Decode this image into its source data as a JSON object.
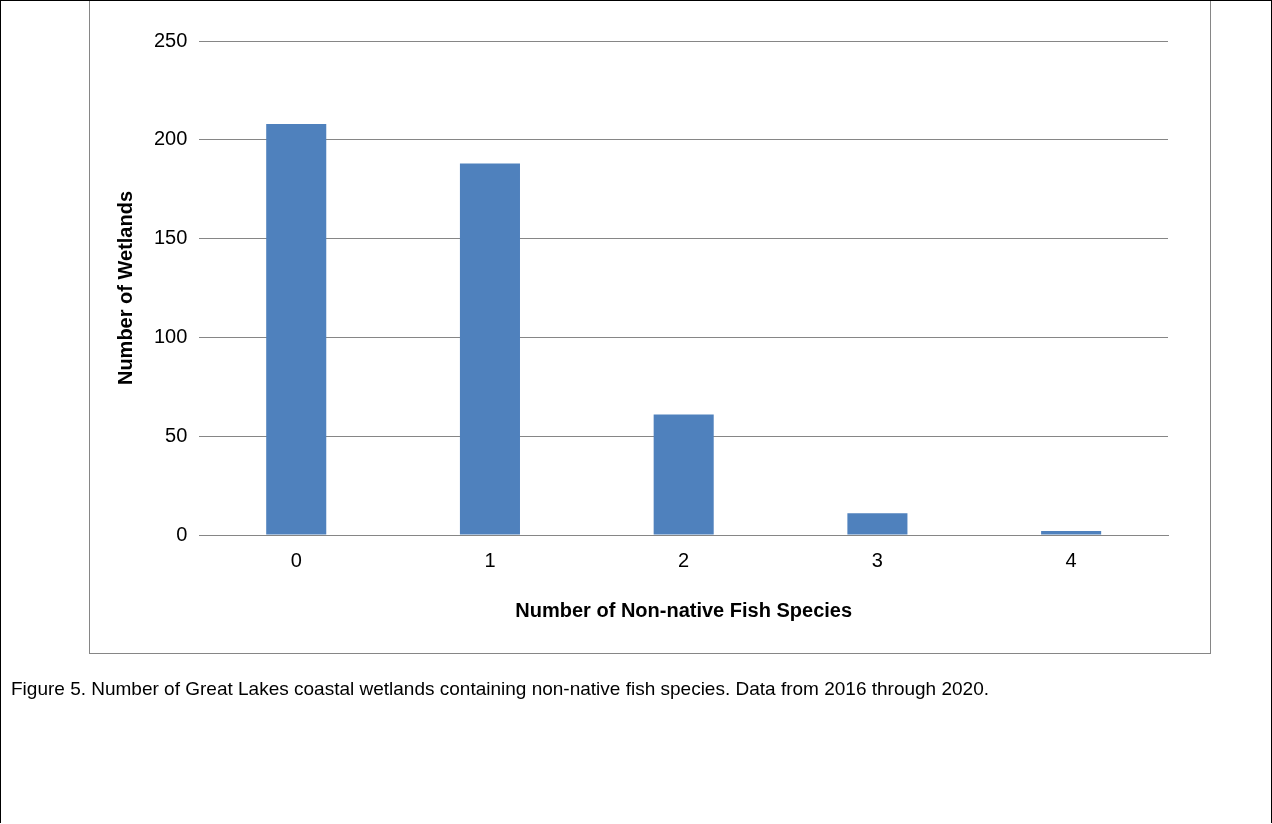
{
  "chart_data": {
    "type": "bar",
    "xlabel": "Number of Non-native Fish Species",
    "ylabel": "Number of Wetlands",
    "categories": [
      "0",
      "1",
      "2",
      "3",
      "4"
    ],
    "values": [
      208,
      188,
      61,
      11,
      2
    ],
    "color": "#4f81bd",
    "ylim": [
      0,
      250
    ],
    "yticks": [
      0,
      50,
      100,
      150,
      200,
      250
    ],
    "grid": "y",
    "legend": false,
    "annotations": [
      "Figure 5. Number of Great Lakes coastal wetlands containing non-native fish species. Data from 2016 through 2020."
    ]
  }
}
